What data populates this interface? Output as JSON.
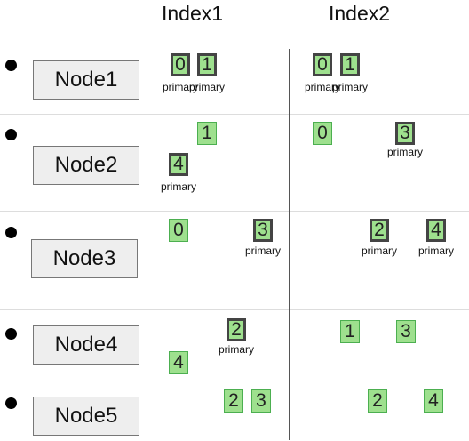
{
  "headers": [
    "Index1",
    "Index2"
  ],
  "nodes": [
    "Node1",
    "Node2",
    "Node3",
    "Node4",
    "Node5"
  ],
  "shards": [
    {
      "label": "0",
      "caption": "primary"
    },
    {
      "label": "1",
      "caption": "primary"
    },
    {
      "label": "0",
      "caption": "primary"
    },
    {
      "label": "1",
      "caption": "primary"
    },
    {
      "label": "1"
    },
    {
      "label": "4",
      "caption": "primary"
    },
    {
      "label": "0"
    },
    {
      "label": "3",
      "caption": "primary"
    },
    {
      "label": "0"
    },
    {
      "label": "3",
      "caption": "primary"
    },
    {
      "label": "2",
      "caption": "primary"
    },
    {
      "label": "4",
      "caption": "primary"
    },
    {
      "label": "2",
      "caption": "primary"
    },
    {
      "label": "4"
    },
    {
      "label": "1"
    },
    {
      "label": "3"
    },
    {
      "label": "2"
    },
    {
      "label": "3"
    },
    {
      "label": "2"
    },
    {
      "label": "4"
    }
  ]
}
